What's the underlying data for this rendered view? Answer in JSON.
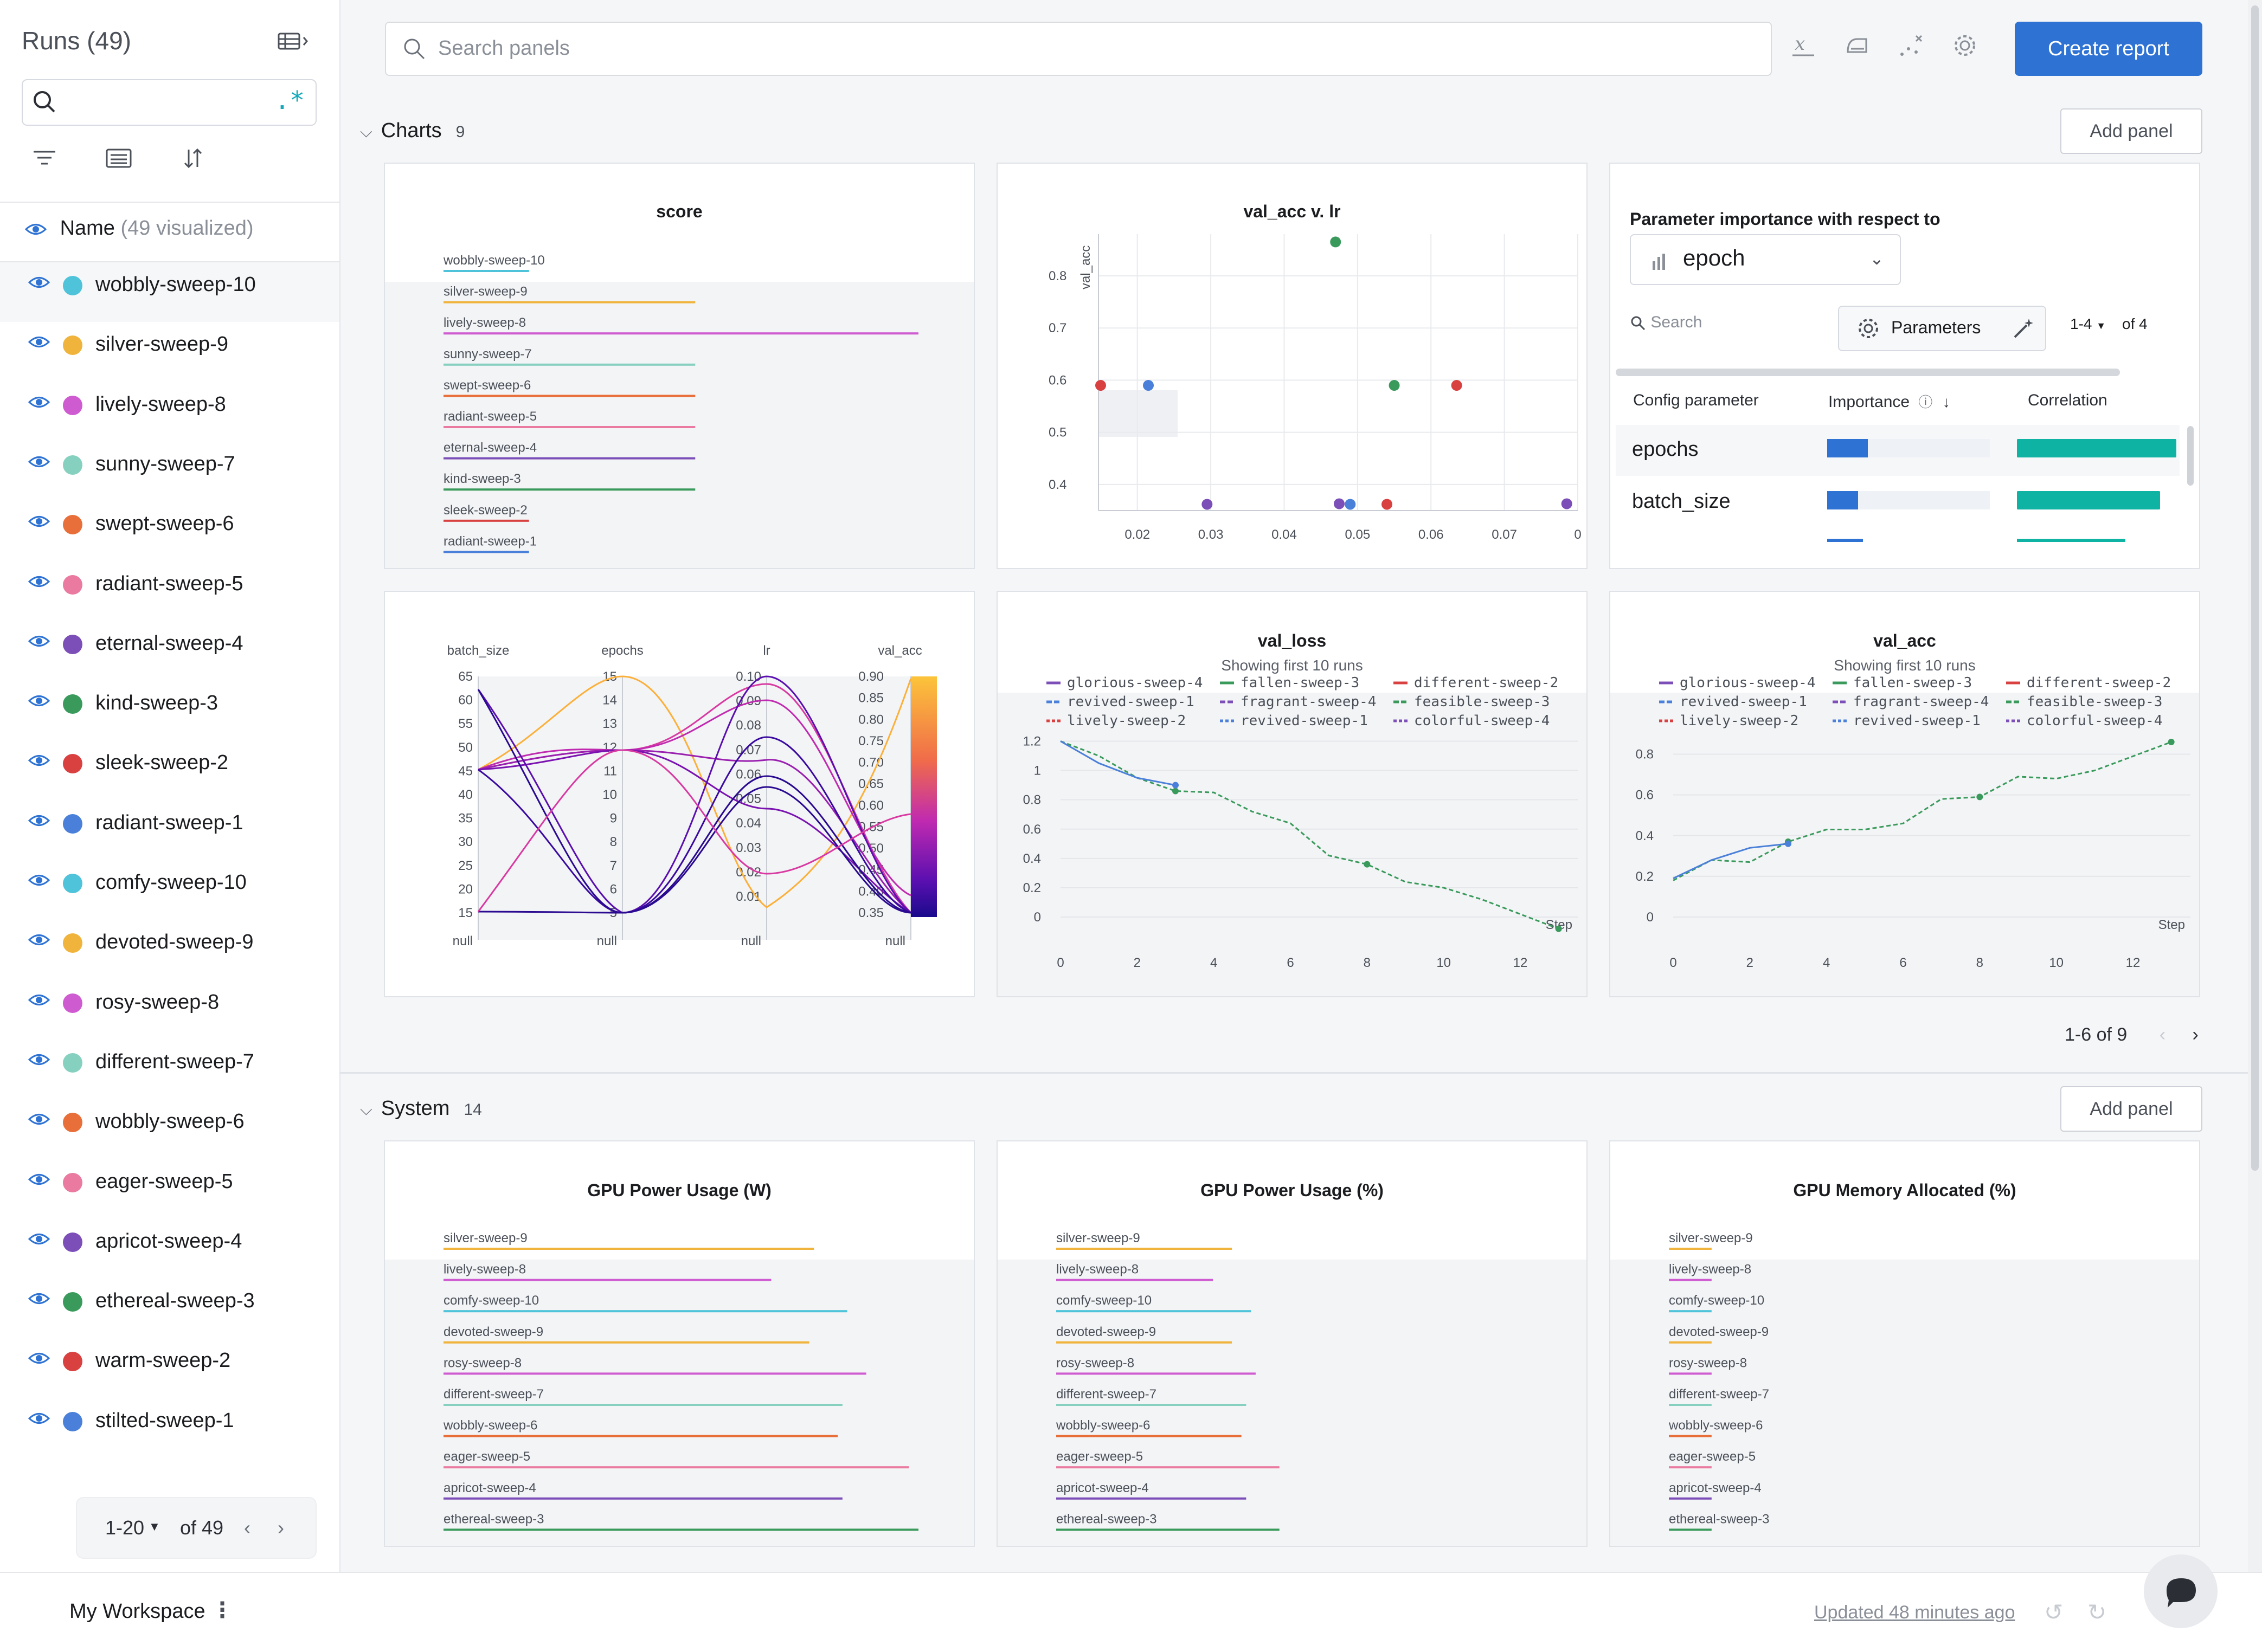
{
  "sidebar": {
    "title": "Runs",
    "run_count": "(49)",
    "name_header": "Name",
    "visualized": "(49 visualized)",
    "regex_label": ".*",
    "runs": [
      {
        "name": "wobbly-sweep-10",
        "color": "#4ec3d9"
      },
      {
        "name": "silver-sweep-9",
        "color": "#f0b43c"
      },
      {
        "name": "lively-sweep-8",
        "color": "#cf5bd1"
      },
      {
        "name": "sunny-sweep-7",
        "color": "#86d0c0"
      },
      {
        "name": "swept-sweep-6",
        "color": "#e96f3a"
      },
      {
        "name": "radiant-sweep-5",
        "color": "#ea7aa0"
      },
      {
        "name": "eternal-sweep-4",
        "color": "#7c4fb8"
      },
      {
        "name": "kind-sweep-3",
        "color": "#3a9a5c"
      },
      {
        "name": "sleek-sweep-2",
        "color": "#d94141"
      },
      {
        "name": "radiant-sweep-1",
        "color": "#4a80d9"
      },
      {
        "name": "comfy-sweep-10",
        "color": "#4ec3d9"
      },
      {
        "name": "devoted-sweep-9",
        "color": "#f0b43c"
      },
      {
        "name": "rosy-sweep-8",
        "color": "#cf5bd1"
      },
      {
        "name": "different-sweep-7",
        "color": "#86d0c0"
      },
      {
        "name": "wobbly-sweep-6",
        "color": "#e96f3a"
      },
      {
        "name": "eager-sweep-5",
        "color": "#ea7aa0"
      },
      {
        "name": "apricot-sweep-4",
        "color": "#7c4fb8"
      },
      {
        "name": "ethereal-sweep-3",
        "color": "#3a9a5c"
      },
      {
        "name": "warm-sweep-2",
        "color": "#d94141"
      },
      {
        "name": "stilted-sweep-1",
        "color": "#4a80d9"
      }
    ],
    "pager": {
      "range": "1-20",
      "of": "of 49"
    }
  },
  "topbar": {
    "search_placeholder": "Search panels",
    "create_report": "Create report"
  },
  "charts_section": {
    "title": "Charts",
    "count": "9",
    "add_panel": "Add panel",
    "pager": "1-6 of 9"
  },
  "system_section": {
    "title": "System",
    "count": "14",
    "add_panel": "Add panel"
  },
  "panels": {
    "score": {
      "title": "score",
      "bars": [
        {
          "label": "wobbly-sweep-10",
          "value": 0.18,
          "color": "#4ec3d9"
        },
        {
          "label": "silver-sweep-9",
          "value": 0.53,
          "color": "#f0b43c"
        },
        {
          "label": "lively-sweep-8",
          "value": 1.0,
          "color": "#cf5bd1"
        },
        {
          "label": "sunny-sweep-7",
          "value": 0.53,
          "color": "#86d0c0"
        },
        {
          "label": "swept-sweep-6",
          "value": 0.53,
          "color": "#e96f3a"
        },
        {
          "label": "radiant-sweep-5",
          "value": 0.53,
          "color": "#ea7aa0"
        },
        {
          "label": "eternal-sweep-4",
          "value": 0.53,
          "color": "#7c4fb8"
        },
        {
          "label": "kind-sweep-3",
          "value": 0.53,
          "color": "#3a9a5c"
        },
        {
          "label": "sleek-sweep-2",
          "value": 0.18,
          "color": "#d94141"
        },
        {
          "label": "radiant-sweep-1",
          "value": 0.18,
          "color": "#4a80d9"
        }
      ]
    },
    "scatter": {
      "title": "val_acc v. lr",
      "ylabel": "val_acc",
      "xticks": [
        "0.02",
        "0.03",
        "0.04",
        "0.05",
        "0.06",
        "0.07",
        "0"
      ],
      "yticks": [
        "0.4",
        "0.5",
        "0.6",
        "0.7",
        "0.8"
      ],
      "points": [
        {
          "x": 0.015,
          "y": 0.59,
          "color": "#d94141"
        },
        {
          "x": 0.0215,
          "y": 0.59,
          "color": "#4a80d9"
        },
        {
          "x": 0.0295,
          "y": 0.362,
          "color": "#7c4fb8"
        },
        {
          "x": 0.047,
          "y": 0.865,
          "color": "#3a9a5c"
        },
        {
          "x": 0.0475,
          "y": 0.363,
          "color": "#7c4fb8"
        },
        {
          "x": 0.049,
          "y": 0.362,
          "color": "#4a80d9"
        },
        {
          "x": 0.055,
          "y": 0.59,
          "color": "#3a9a5c"
        },
        {
          "x": 0.054,
          "y": 0.362,
          "color": "#d94141"
        },
        {
          "x": 0.0635,
          "y": 0.59,
          "color": "#d94141"
        },
        {
          "x": 0.0785,
          "y": 0.363,
          "color": "#7c4fb8"
        }
      ]
    },
    "param_importance": {
      "title": "Parameter importance with respect to",
      "metric": "epoch",
      "search_placeholder": "Search",
      "params_button": "Parameters",
      "range": "1-4",
      "of": "of 4",
      "headers": {
        "param": "Config parameter",
        "importance": "Importance",
        "correlation": "Correlation"
      },
      "rows": [
        {
          "name": "epochs",
          "importance": 0.25,
          "correlation": 0.98
        },
        {
          "name": "batch_size",
          "importance": 0.19,
          "correlation": 0.88
        }
      ]
    },
    "parallel": {
      "axes": [
        {
          "name": "batch_size",
          "ticks": [
            "65",
            "60",
            "55",
            "50",
            "45",
            "40",
            "35",
            "30",
            "25",
            "20",
            "15"
          ]
        },
        {
          "name": "epochs",
          "ticks": [
            "15",
            "14",
            "13",
            "12",
            "11",
            "10",
            "9",
            "8",
            "7",
            "6",
            "5"
          ]
        },
        {
          "name": "lr",
          "ticks": [
            "0.10",
            "0.09",
            "0.08",
            "0.07",
            "0.06",
            "0.05",
            "0.04",
            "0.03",
            "0.02",
            "0.01"
          ]
        },
        {
          "name": "val_acc",
          "ticks": [
            "0.90",
            "0.85",
            "0.80",
            "0.75",
            "0.70",
            "0.65",
            "0.60",
            "0.55",
            "0.50",
            "0.45",
            "0.40",
            "0.35"
          ]
        }
      ],
      "null_label": "null"
    },
    "val_loss": {
      "title": "val_loss",
      "subtitle": "Showing first 10 runs",
      "xlabel": "Step",
      "legend": [
        {
          "name": "glorious-sweep-4",
          "color": "#7c4fb8"
        },
        {
          "name": "fallen-sweep-3",
          "color": "#3a9a5c"
        },
        {
          "name": "different-sweep-2",
          "color": "#d94141"
        },
        {
          "name": "revived-sweep-1",
          "color": "#4a80d9"
        },
        {
          "name": "fragrant-sweep-4",
          "color": "#7c4fb8"
        },
        {
          "name": "feasible-sweep-3",
          "color": "#3a9a5c"
        },
        {
          "name": "lively-sweep-2",
          "color": "#d94141"
        },
        {
          "name": "revived-sweep-1",
          "color": "#4a80d9"
        },
        {
          "name": "colorful-sweep-4",
          "color": "#7c4fb8"
        }
      ],
      "xticks": [
        "0",
        "2",
        "4",
        "6",
        "8",
        "10",
        "12"
      ],
      "yticks": [
        "0",
        "0.2",
        "0.4",
        "0.6",
        "0.8",
        "1",
        "1.2"
      ]
    },
    "val_acc": {
      "title": "val_acc",
      "subtitle": "Showing first 10 runs",
      "xlabel": "Step",
      "legend": [
        {
          "name": "glorious-sweep-4",
          "color": "#7c4fb8"
        },
        {
          "name": "fallen-sweep-3",
          "color": "#3a9a5c"
        },
        {
          "name": "different-sweep-2",
          "color": "#d94141"
        },
        {
          "name": "revived-sweep-1",
          "color": "#4a80d9"
        },
        {
          "name": "fragrant-sweep-4",
          "color": "#7c4fb8"
        },
        {
          "name": "feasible-sweep-3",
          "color": "#3a9a5c"
        },
        {
          "name": "lively-sweep-2",
          "color": "#d94141"
        },
        {
          "name": "revived-sweep-1",
          "color": "#4a80d9"
        },
        {
          "name": "colorful-sweep-4",
          "color": "#7c4fb8"
        }
      ],
      "xticks": [
        "0",
        "2",
        "4",
        "6",
        "8",
        "10",
        "12"
      ],
      "yticks": [
        "0",
        "0.2",
        "0.4",
        "0.6",
        "0.8"
      ]
    },
    "gpu_power_w": {
      "title": "GPU Power Usage (W)",
      "bars": [
        {
          "label": "silver-sweep-9",
          "value": 0.78,
          "color": "#f0b43c"
        },
        {
          "label": "lively-sweep-8",
          "value": 0.69,
          "color": "#cf5bd1"
        },
        {
          "label": "comfy-sweep-10",
          "value": 0.85,
          "color": "#4ec3d9"
        },
        {
          "label": "devoted-sweep-9",
          "value": 0.77,
          "color": "#f0b43c"
        },
        {
          "label": "rosy-sweep-8",
          "value": 0.89,
          "color": "#cf5bd1"
        },
        {
          "label": "different-sweep-7",
          "value": 0.84,
          "color": "#86d0c0"
        },
        {
          "label": "wobbly-sweep-6",
          "value": 0.83,
          "color": "#e96f3a"
        },
        {
          "label": "eager-sweep-5",
          "value": 0.98,
          "color": "#ea7aa0"
        },
        {
          "label": "apricot-sweep-4",
          "value": 0.84,
          "color": "#7c4fb8"
        },
        {
          "label": "ethereal-sweep-3",
          "value": 1.0,
          "color": "#3a9a5c"
        }
      ]
    },
    "gpu_power_pct": {
      "title": "GPU Power Usage (%)",
      "bars": [
        {
          "label": "silver-sweep-9",
          "value": 0.37,
          "color": "#f0b43c"
        },
        {
          "label": "lively-sweep-8",
          "value": 0.33,
          "color": "#cf5bd1"
        },
        {
          "label": "comfy-sweep-10",
          "value": 0.41,
          "color": "#4ec3d9"
        },
        {
          "label": "devoted-sweep-9",
          "value": 0.37,
          "color": "#f0b43c"
        },
        {
          "label": "rosy-sweep-8",
          "value": 0.42,
          "color": "#cf5bd1"
        },
        {
          "label": "different-sweep-7",
          "value": 0.4,
          "color": "#86d0c0"
        },
        {
          "label": "wobbly-sweep-6",
          "value": 0.39,
          "color": "#e96f3a"
        },
        {
          "label": "eager-sweep-5",
          "value": 0.47,
          "color": "#ea7aa0"
        },
        {
          "label": "apricot-sweep-4",
          "value": 0.4,
          "color": "#7c4fb8"
        },
        {
          "label": "ethereal-sweep-3",
          "value": 0.47,
          "color": "#3a9a5c"
        }
      ]
    },
    "gpu_mem": {
      "title": "GPU Memory Allocated (%)",
      "bars": [
        {
          "label": "silver-sweep-9",
          "value": 0.09,
          "color": "#f0b43c"
        },
        {
          "label": "lively-sweep-8",
          "value": 0.09,
          "color": "#cf5bd1"
        },
        {
          "label": "comfy-sweep-10",
          "value": 0.09,
          "color": "#4ec3d9"
        },
        {
          "label": "devoted-sweep-9",
          "value": 0.09,
          "color": "#f0b43c"
        },
        {
          "label": "rosy-sweep-8",
          "value": 0.09,
          "color": "#cf5bd1"
        },
        {
          "label": "different-sweep-7",
          "value": 0.09,
          "color": "#86d0c0"
        },
        {
          "label": "wobbly-sweep-6",
          "value": 0.09,
          "color": "#e96f3a"
        },
        {
          "label": "eager-sweep-5",
          "value": 0.09,
          "color": "#ea7aa0"
        },
        {
          "label": "apricot-sweep-4",
          "value": 0.09,
          "color": "#7c4fb8"
        },
        {
          "label": "ethereal-sweep-3",
          "value": 0.09,
          "color": "#3a9a5c"
        }
      ]
    }
  },
  "footer": {
    "workspace": "My Workspace",
    "updated": "Updated 48 minutes ago"
  },
  "chart_data": [
    {
      "type": "bar",
      "title": "score",
      "categories": [
        "wobbly-sweep-10",
        "silver-sweep-9",
        "lively-sweep-8",
        "sunny-sweep-7",
        "swept-sweep-6",
        "radiant-sweep-5",
        "eternal-sweep-4",
        "kind-sweep-3",
        "sleek-sweep-2",
        "radiant-sweep-1"
      ],
      "values": [
        0.18,
        0.53,
        1.0,
        0.53,
        0.53,
        0.53,
        0.53,
        0.53,
        0.18,
        0.18
      ]
    },
    {
      "type": "scatter",
      "title": "val_acc v. lr",
      "ylabel": "val_acc",
      "x": [
        0.015,
        0.0215,
        0.0295,
        0.047,
        0.0475,
        0.049,
        0.055,
        0.054,
        0.0635,
        0.0785
      ],
      "y": [
        0.59,
        0.59,
        0.362,
        0.865,
        0.363,
        0.362,
        0.59,
        0.362,
        0.59,
        0.363
      ],
      "xlim": [
        0.015,
        0.08
      ],
      "ylim": [
        0.35,
        0.88
      ]
    },
    {
      "type": "line",
      "title": "val_loss",
      "xlabel": "Step",
      "xlim": [
        0,
        13.5
      ],
      "ylim": [
        0,
        1.25
      ],
      "series": [
        {
          "name": "feasible-sweep-3",
          "x": [
            0,
            1,
            2,
            3,
            4,
            5,
            6,
            7,
            8,
            9,
            10,
            11,
            12,
            13
          ],
          "y": [
            1.2,
            1.1,
            0.95,
            0.86,
            0.85,
            0.72,
            0.64,
            0.42,
            0.36,
            0.24,
            0.2,
            0.12,
            0.02,
            -0.08
          ]
        },
        {
          "name": "revived-sweep-1",
          "x": [
            0,
            1,
            2,
            3
          ],
          "y": [
            1.2,
            1.05,
            0.95,
            0.9
          ]
        }
      ]
    },
    {
      "type": "line",
      "title": "val_acc",
      "xlabel": "Step",
      "xlim": [
        0,
        13.5
      ],
      "ylim": [
        0,
        0.9
      ],
      "series": [
        {
          "name": "feasible-sweep-3",
          "x": [
            0,
            1,
            2,
            3,
            4,
            5,
            6,
            7,
            8,
            9,
            10,
            11,
            12,
            13
          ],
          "y": [
            0.18,
            0.28,
            0.27,
            0.37,
            0.43,
            0.43,
            0.46,
            0.58,
            0.59,
            0.69,
            0.68,
            0.72,
            0.79,
            0.86
          ]
        },
        {
          "name": "revived-sweep-1",
          "x": [
            0,
            1,
            2,
            3
          ],
          "y": [
            0.19,
            0.28,
            0.34,
            0.36
          ]
        }
      ]
    },
    {
      "type": "bar",
      "title": "GPU Power Usage (W)",
      "categories": [
        "silver-sweep-9",
        "lively-sweep-8",
        "comfy-sweep-10",
        "devoted-sweep-9",
        "rosy-sweep-8",
        "different-sweep-7",
        "wobbly-sweep-6",
        "eager-sweep-5",
        "apricot-sweep-4",
        "ethereal-sweep-3"
      ],
      "values": [
        0.78,
        0.69,
        0.85,
        0.77,
        0.89,
        0.84,
        0.83,
        0.98,
        0.84,
        1.0
      ]
    },
    {
      "type": "bar",
      "title": "GPU Power Usage (%)",
      "categories": [
        "silver-sweep-9",
        "lively-sweep-8",
        "comfy-sweep-10",
        "devoted-sweep-9",
        "rosy-sweep-8",
        "different-sweep-7",
        "wobbly-sweep-6",
        "eager-sweep-5",
        "apricot-sweep-4",
        "ethereal-sweep-3"
      ],
      "values": [
        0.37,
        0.33,
        0.41,
        0.37,
        0.42,
        0.4,
        0.39,
        0.47,
        0.4,
        0.47
      ]
    },
    {
      "type": "bar",
      "title": "GPU Memory Allocated (%)",
      "categories": [
        "silver-sweep-9",
        "lively-sweep-8",
        "comfy-sweep-10",
        "devoted-sweep-9",
        "rosy-sweep-8",
        "different-sweep-7",
        "wobbly-sweep-6",
        "eager-sweep-5",
        "apricot-sweep-4",
        "ethereal-sweep-3"
      ],
      "values": [
        0.09,
        0.09,
        0.09,
        0.09,
        0.09,
        0.09,
        0.09,
        0.09,
        0.09,
        0.09
      ]
    }
  ]
}
